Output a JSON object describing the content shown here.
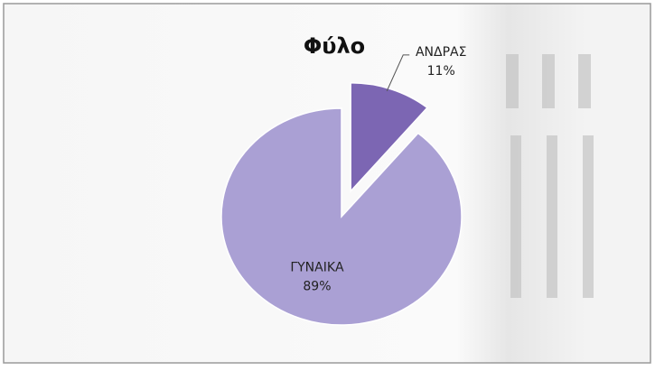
{
  "chart_data": {
    "type": "pie",
    "title": "Φύλο",
    "categories": [
      "ΑΝΔΡΑΣ",
      "ΓΥΝΑΙΚΑ"
    ],
    "values": [
      11,
      89
    ],
    "value_labels": [
      "11%",
      "89%"
    ],
    "colors": [
      "#7c66b3",
      "#aaa0d4"
    ],
    "exploded": [
      true,
      false
    ]
  }
}
